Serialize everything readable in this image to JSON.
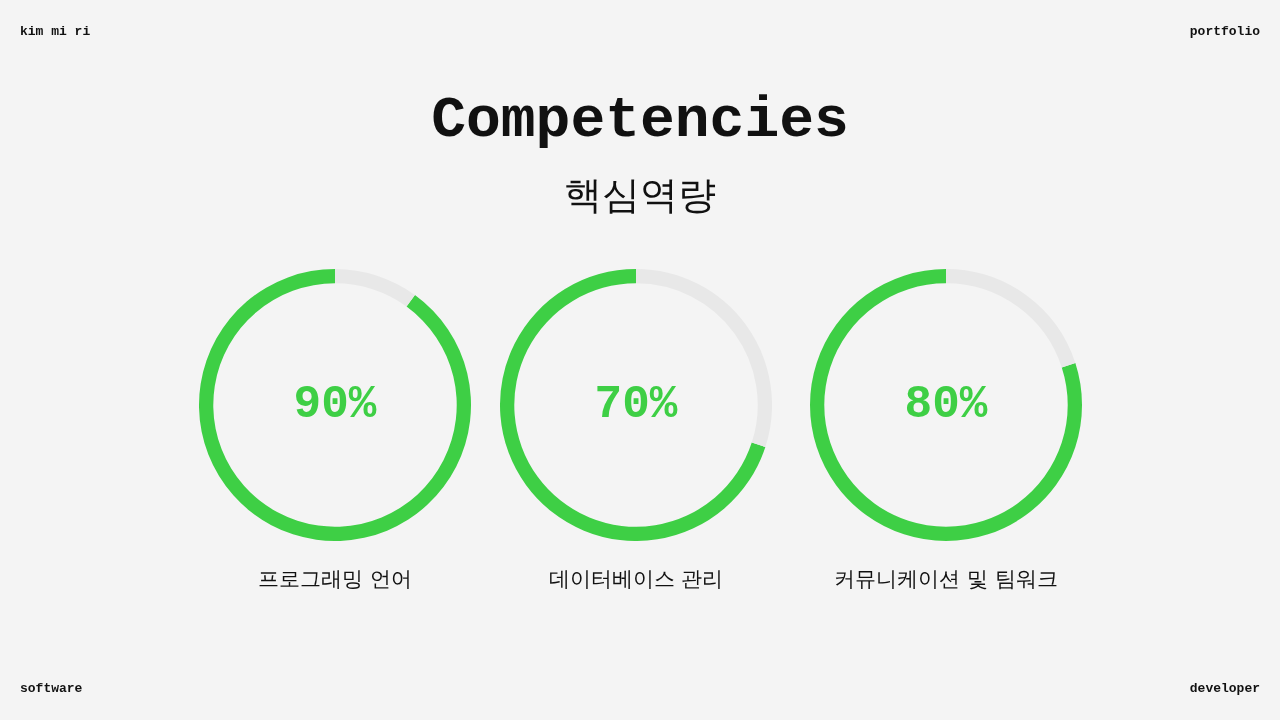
{
  "chart_data": [
    {
      "type": "other",
      "title": "Competencies",
      "subtitle": "핵심역량",
      "annotations": [
        "kim mi ri",
        "portfolio",
        "software",
        "developer"
      ]
    },
    {
      "type": "donut",
      "title": "프로그래밍 언어",
      "categories": [
        null,
        null
      ],
      "values": [
        90,
        10
      ],
      "colors": [
        "#3ecf45",
        "#e8e8e8"
      ],
      "annotations": [
        "90%"
      ]
    },
    {
      "type": "donut",
      "title": "데이터베이스 관리",
      "categories": [
        null,
        null
      ],
      "values": [
        70,
        30
      ],
      "colors": [
        "#3ecf45",
        "#e8e8e8"
      ],
      "annotations": [
        "70%"
      ]
    },
    {
      "type": "donut",
      "title": "커뮤니케이션 및 팀워크",
      "categories": [
        null,
        null
      ],
      "values": [
        80,
        20
      ],
      "colors": [
        "#3ecf45",
        "#e8e8e8"
      ],
      "annotations": [
        "80%"
      ]
    }
  ]
}
